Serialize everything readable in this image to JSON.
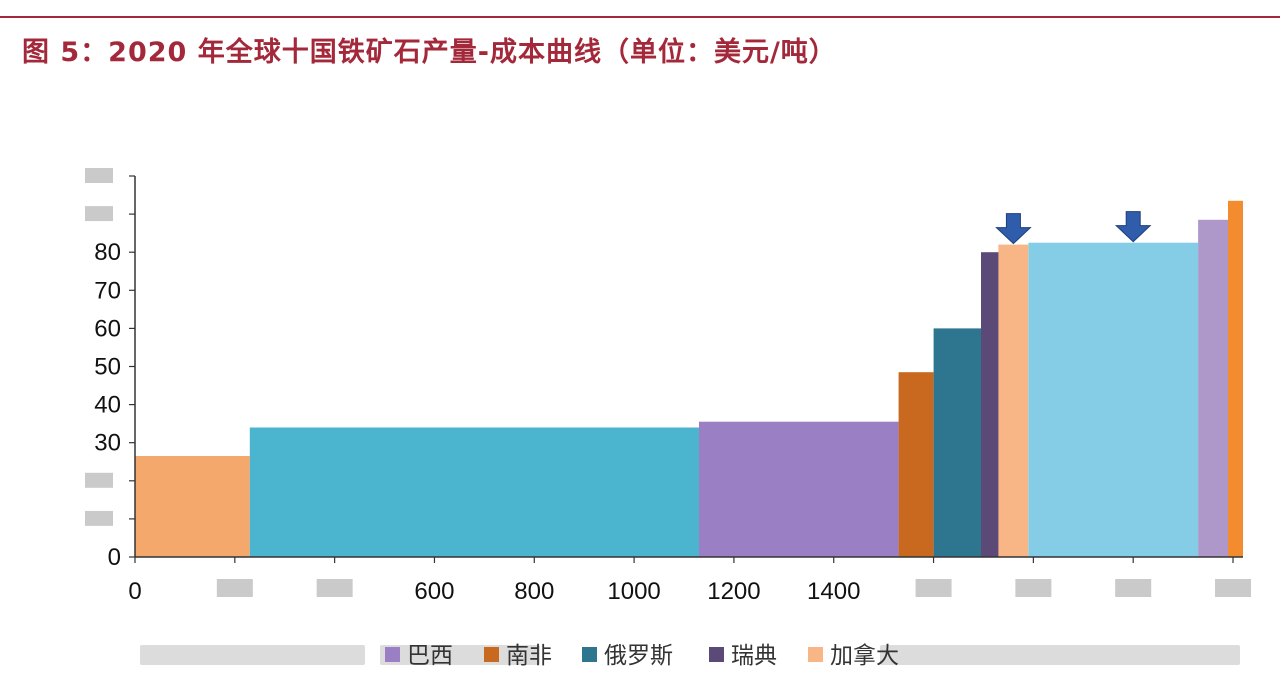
{
  "figure": {
    "title": "图 5：2020 年全球十国铁矿石产量-成本曲线（单位：美元/吨）",
    "rule_color": "#a3283a"
  },
  "chart_data": {
    "type": "bar",
    "subtype": "variable-width cost curve",
    "title": "图 5：2020 年全球十国铁矿石产量-成本曲线（单位：美元/吨）",
    "xlabel": "",
    "ylabel": "",
    "xlim": [
      0,
      2220
    ],
    "ylim": [
      0,
      100
    ],
    "x_ticks": [
      0,
      200,
      400,
      600,
      800,
      1000,
      1200,
      1400,
      1600,
      1800,
      2000,
      2200
    ],
    "x_tick_labels": [
      "0",
      "",
      "",
      "600",
      "800",
      "1000",
      "1200",
      "1400",
      "",
      "",
      "",
      ""
    ],
    "y_ticks": [
      0,
      10,
      20,
      30,
      40,
      50,
      60,
      70,
      80,
      90,
      100
    ],
    "y_tick_labels": [
      "0",
      "",
      "",
      "30",
      "40",
      "50",
      "60",
      "70",
      "80",
      "",
      ""
    ],
    "grid": false,
    "legend_position": "bottom",
    "segments": [
      {
        "x_start": 0,
        "x_end": 230,
        "cost": 26.5,
        "color": "#f4a86b"
      },
      {
        "x_start": 230,
        "x_end": 1130,
        "cost": 34.0,
        "color": "#4bb5d0"
      },
      {
        "x_start": 1130,
        "x_end": 1530,
        "cost": 35.5,
        "color": "#9b7fc4"
      },
      {
        "x_start": 1530,
        "x_end": 1600,
        "cost": 48.5,
        "color": "#c8691f"
      },
      {
        "x_start": 1600,
        "x_end": 1695,
        "cost": 60.0,
        "color": "#2e7690"
      },
      {
        "x_start": 1695,
        "x_end": 1730,
        "cost": 80.0,
        "color": "#5b4a78"
      },
      {
        "x_start": 1730,
        "x_end": 1790,
        "cost": 82.0,
        "color": "#f8b585"
      },
      {
        "x_start": 1790,
        "x_end": 2130,
        "cost": 82.5,
        "color": "#85cde6"
      },
      {
        "x_start": 2130,
        "x_end": 2190,
        "cost": 88.5,
        "color": "#ad98c9"
      },
      {
        "x_start": 2190,
        "x_end": 2220,
        "cost": 93.5,
        "color": "#f28c2e"
      }
    ],
    "markers": [
      {
        "type": "arrow-down",
        "x": 1760,
        "color": "#2f5cab"
      },
      {
        "type": "arrow-down",
        "x": 2000,
        "color": "#2f5cab"
      }
    ],
    "legend": [
      {
        "label": "巴西",
        "color": "#9b7fc4"
      },
      {
        "label": "南非",
        "color": "#c8691f"
      },
      {
        "label": "俄罗斯",
        "color": "#2e7690"
      },
      {
        "label": "瑞典",
        "color": "#5b4a78"
      },
      {
        "label": "加拿大",
        "color": "#f8b585"
      }
    ]
  }
}
